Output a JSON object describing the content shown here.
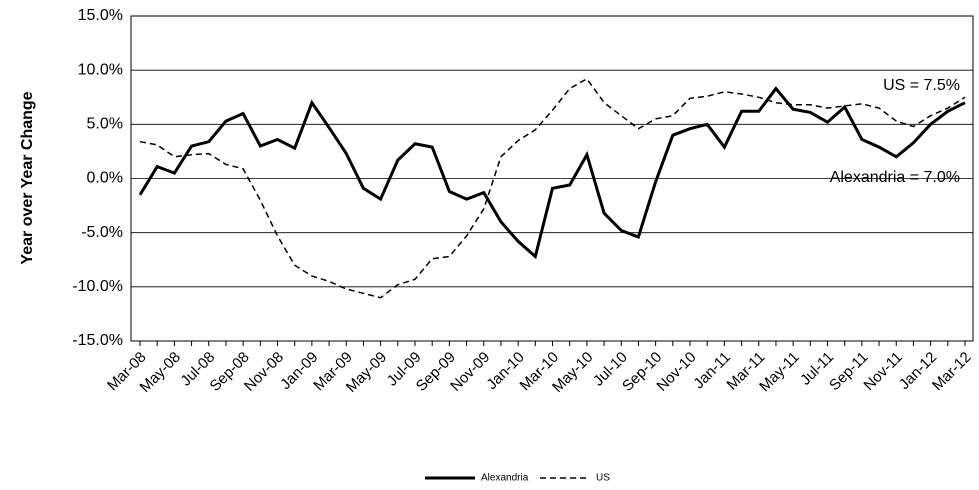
{
  "chart_data": {
    "type": "line",
    "y_label": "Year over Year Change",
    "categories": [
      "Mar-08",
      null,
      "May-08",
      null,
      "Jul-08",
      null,
      "Sep-08",
      null,
      "Nov-08",
      null,
      "Jan-09",
      null,
      "Mar-09",
      null,
      "May-09",
      null,
      "Jul-09",
      null,
      "Sep-09",
      null,
      "Nov-09",
      null,
      "Jan-10",
      null,
      "Mar-10",
      null,
      "May-10",
      null,
      "Jul-10",
      null,
      "Sep-10",
      null,
      "Nov-10",
      null,
      "Jan-11",
      null,
      "Mar-11",
      null,
      "May-11",
      null,
      "Jul-11",
      null,
      "Sep-11",
      null,
      "Nov-11",
      null,
      "Jan-12",
      null,
      "Mar-12"
    ],
    "series": [
      {
        "name": "Alexandria",
        "color": "#000000",
        "dash": "none",
        "width": 3,
        "values": [
          -1.5,
          1.1,
          0.5,
          3.0,
          3.4,
          5.3,
          6.0,
          3.0,
          3.6,
          2.8,
          7.0,
          4.7,
          2.3,
          -0.9,
          -1.9,
          1.7,
          3.2,
          2.9,
          -1.2,
          -1.9,
          -1.3,
          -4.0,
          -5.8,
          -7.2,
          -0.9,
          -0.6,
          2.2,
          -3.2,
          -4.8,
          -5.4,
          -0.3,
          4.0,
          4.6,
          5.0,
          2.9,
          6.2,
          6.2,
          8.3,
          6.4,
          6.1,
          5.2,
          6.6,
          3.6,
          2.9,
          2.0,
          3.3,
          5.0,
          6.2,
          7.0
        ]
      },
      {
        "name": "US",
        "color": "#000000",
        "dash": "6,4",
        "width": 1.5,
        "values": [
          3.4,
          3.1,
          2.0,
          2.2,
          2.3,
          1.3,
          0.9,
          -2.0,
          -5.3,
          -8.0,
          -9.0,
          -9.5,
          -10.2,
          -10.6,
          -11.0,
          -9.8,
          -9.3,
          -7.4,
          -7.2,
          -5.3,
          -2.8,
          2.0,
          3.5,
          4.5,
          6.3,
          8.3,
          9.2,
          7.0,
          5.8,
          4.6,
          5.5,
          5.8,
          7.4,
          7.6,
          8.0,
          7.8,
          7.5,
          7.0,
          6.8,
          6.8,
          6.5,
          6.7,
          6.9,
          6.5,
          5.3,
          4.8,
          5.8,
          6.5,
          7.5
        ]
      }
    ],
    "annotations": [
      "US = 7.5%",
      "Alexandria = 7.0%"
    ],
    "ylim": [
      -15,
      15
    ],
    "yticks": [
      {
        "value": -15,
        "label": "-15.0%"
      },
      {
        "value": -10,
        "label": "-10.0%"
      },
      {
        "value": -5,
        "label": "-5.0%"
      },
      {
        "value": 0,
        "label": "0.0%"
      },
      {
        "value": 5,
        "label": "5.0%"
      },
      {
        "value": 10,
        "label": "10.0%"
      },
      {
        "value": 15,
        "label": "15.0%"
      }
    ],
    "grid": true,
    "legend": "bottom"
  }
}
